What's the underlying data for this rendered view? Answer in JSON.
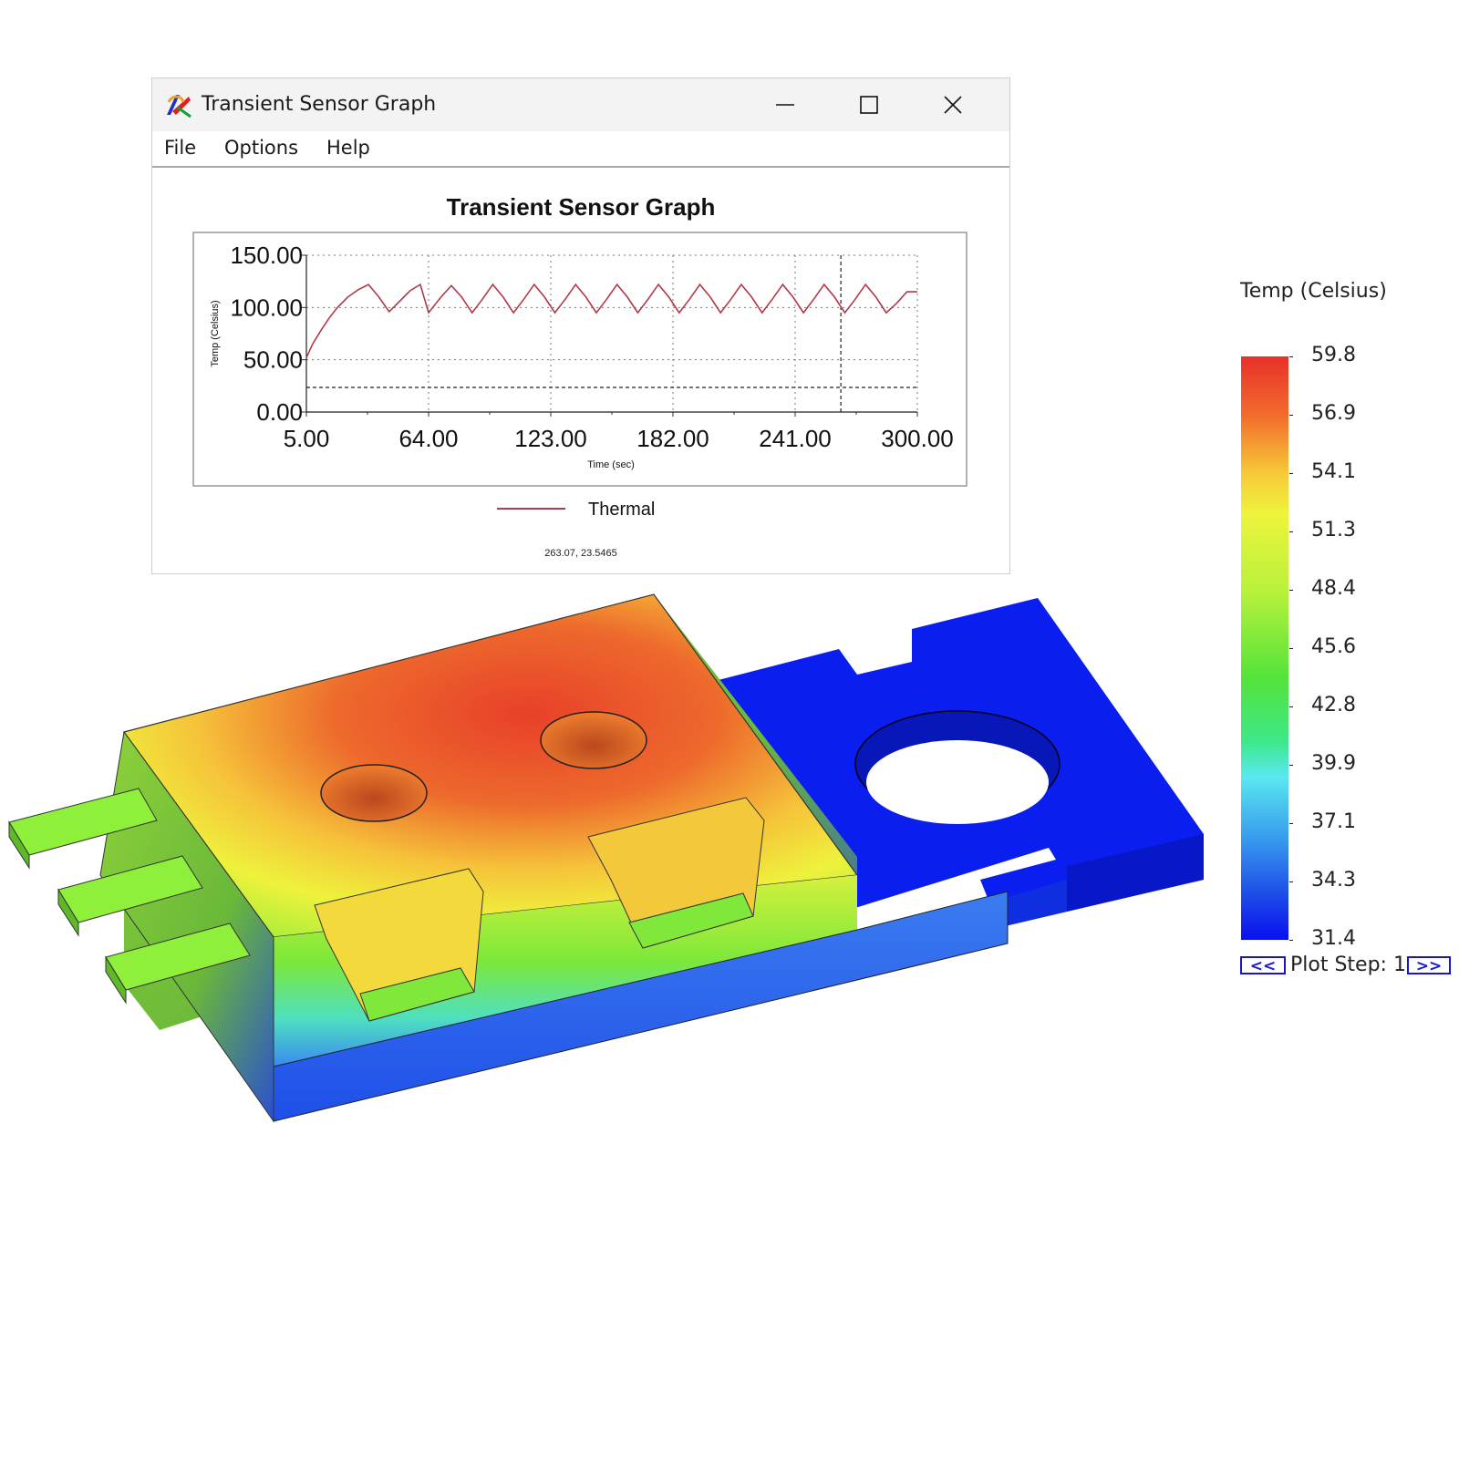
{
  "window": {
    "title": "Transient Sensor Graph",
    "menu": [
      "File",
      "Options",
      "Help"
    ]
  },
  "chart_data": {
    "type": "line",
    "title": "Transient Sensor Graph",
    "xlabel": "Time (sec)",
    "ylabel": "Temp (Celsius)",
    "xlim": [
      5,
      300
    ],
    "ylim": [
      0,
      150
    ],
    "x_ticks": [
      "5.00",
      "64.00",
      "123.00",
      "182.00",
      "241.00",
      "300.00"
    ],
    "y_ticks": [
      "0.00",
      "50.00",
      "100.00",
      "150.00"
    ],
    "grid": true,
    "legend": "bottom",
    "cursor_x": 263.07,
    "threshold_y": 23.5465,
    "series": [
      {
        "name": "Thermal",
        "color": "#b03a4a",
        "x": [
          5,
          8,
          12,
          16,
          20,
          25,
          30,
          35,
          40,
          45,
          50,
          55,
          60,
          64,
          70,
          75,
          80,
          85,
          90,
          95,
          100,
          105,
          110,
          115,
          120,
          125,
          130,
          135,
          140,
          145,
          150,
          155,
          160,
          165,
          170,
          175,
          180,
          185,
          190,
          195,
          200,
          205,
          210,
          215,
          220,
          225,
          230,
          235,
          240,
          245,
          250,
          255,
          260,
          265,
          270,
          275,
          280,
          285,
          290,
          295,
          300
        ],
        "y": [
          52,
          65,
          78,
          90,
          100,
          110,
          117,
          122,
          110,
          96,
          106,
          116,
          122,
          95,
          110,
          121,
          110,
          95,
          108,
          122,
          110,
          95,
          108,
          122,
          110,
          95,
          108,
          122,
          110,
          95,
          108,
          122,
          110,
          95,
          108,
          122,
          110,
          95,
          108,
          122,
          110,
          95,
          108,
          122,
          110,
          95,
          108,
          122,
          110,
          95,
          108,
          122,
          110,
          95,
          108,
          122,
          110,
          95,
          104,
          115,
          115
        ]
      }
    ]
  },
  "coord_readout": "263.07, 23.5465",
  "colorbar": {
    "title": "Temp (Celsius)",
    "labels": [
      "59.8",
      "56.9",
      "54.1",
      "51.3",
      "48.4",
      "45.6",
      "42.8",
      "39.9",
      "37.1",
      "34.3",
      "31.4"
    ],
    "prev_label": "<<",
    "next_label": ">>",
    "plot_step_label": "Plot Step: 1"
  },
  "colors": {
    "hot": "#e8432a",
    "warm": "#f7d53a",
    "mid": "#8ef03a",
    "cool": "#3ee6f0",
    "cold": "#0a16f0"
  }
}
